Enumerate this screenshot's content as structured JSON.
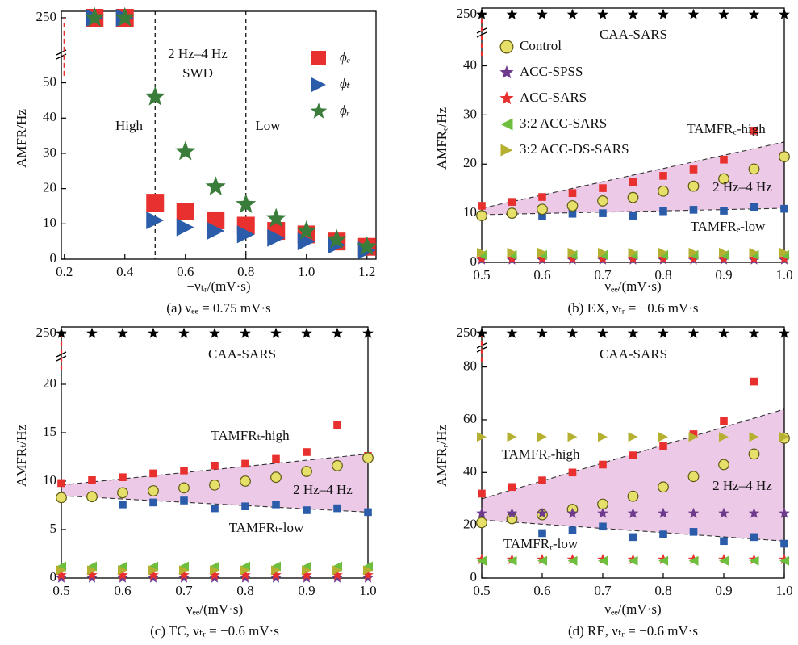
{
  "chart_data": [
    {
      "type": "scatter",
      "caption": "(a) νₑₑ = 0.75 mV·s",
      "x_label": "−νₜᵣ/(mV·s)",
      "y_label": "AMFR/Hz",
      "xlim": [
        0.19,
        1.23
      ],
      "xticks": [
        0.2,
        0.4,
        0.6,
        0.8,
        {
          "value": 1,
          "label": "1.0"
        },
        1.2
      ],
      "ylim": [
        0,
        250
      ],
      "ybreak": 57,
      "yticks": [
        0,
        10,
        20,
        30,
        40,
        50,
        250
      ],
      "x": [
        0.3,
        0.4,
        0.5,
        0.6,
        0.7,
        0.8,
        0.9,
        1.0,
        1.1,
        1.2
      ],
      "vlines": [
        0.5,
        0.8
      ],
      "annotations": [
        "2 Hz–4 Hz",
        "SWD",
        "High",
        "Low"
      ],
      "legend": true,
      "series": [
        {
          "x": [
            0.2,
            0.2
          ],
          "values": [
            52,
            250
          ],
          "color": "#e8312f",
          "style": "dashed"
        },
        {
          "name": "ϕₑ",
          "marker": "square",
          "color": "#e8312f",
          "values": [
            250,
            250,
            16,
            13.5,
            11,
            9.5,
            8,
            7,
            5,
            3.5
          ]
        },
        {
          "name": "ϕₜ",
          "marker": "tri-right",
          "color": "#2a5caa",
          "values": [
            250,
            250,
            11,
            9,
            8,
            7,
            6,
            5,
            4,
            2.5
          ]
        },
        {
          "name": "ϕᵣ",
          "marker": "star",
          "color": "#3a7d3a",
          "values": [
            250,
            250,
            46,
            30.5,
            20.5,
            15.5,
            11.5,
            8,
            5.5,
            3.5
          ]
        }
      ]
    },
    {
      "type": "scatter",
      "caption": "(b) EX, νₜᵣ = −0.6 mV·s",
      "x_label": "νₑₑ/(mV·s)",
      "y_label": "AMFRₑ/Hz",
      "xlim": [
        0.5,
        1.0
      ],
      "xticks": [
        0.5,
        0.6,
        0.7,
        0.8,
        0.9,
        {
          "value": 1,
          "label": "1.0"
        }
      ],
      "ylim": [
        0,
        250
      ],
      "ybreak": 46,
      "yticks": [
        0,
        10,
        20,
        30,
        40,
        250
      ],
      "x": [
        0.5,
        0.55,
        0.6,
        0.65,
        0.7,
        0.75,
        0.8,
        0.85,
        0.9,
        0.95,
        1.0
      ],
      "annotations": [
        "CAA-SARS",
        "TAMFRₑ-high",
        "2 Hz–4 Hz",
        "TAMFRₑ-low"
      ],
      "legend": true,
      "band_color": "#ecc9e6",
      "fit_lines": [
        {
          "x": [
            0.5,
            1.0
          ],
          "values": [
            11,
            24.5
          ]
        },
        {
          "x": [
            0.5,
            1.0
          ],
          "values": [
            9.7,
            11
          ]
        }
      ],
      "series": [
        {
          "x": [
            0.5,
            0.5
          ],
          "values": [
            42,
            250
          ],
          "color": "#e8312f",
          "style": "dashed"
        },
        {
          "marker": "star",
          "color": "#000000",
          "values": [
            250,
            250,
            250,
            250,
            250,
            250,
            250,
            250,
            250,
            250,
            250
          ]
        },
        {
          "marker": "small-square",
          "color": "#e8312f",
          "values": [
            11.5,
            12.3,
            13.3,
            14.1,
            15.1,
            16.3,
            17.6,
            18.9,
            20.9,
            26.8,
            21.7
          ]
        },
        {
          "marker": "small-square",
          "color": "#2a5caa",
          "values": [
            9.7,
            10,
            9.4,
            9.9,
            10,
            9.5,
            10.4,
            10.7,
            10.5,
            11.3,
            10.9
          ]
        },
        {
          "name": "Control",
          "marker": "circle",
          "color": "#e6e06a",
          "values": [
            9.5,
            10,
            10.8,
            11.5,
            12.5,
            13.2,
            14.5,
            15.5,
            17,
            19,
            21.5
          ]
        },
        {
          "name": "ACC-SPSS",
          "marker": "star",
          "color": "#6d3a8c",
          "values": [
            0.5,
            0.5,
            0.5,
            0.5,
            0.5,
            0.5,
            0.5,
            0.5,
            0.5,
            0.5,
            0.5
          ]
        },
        {
          "name": "ACC-SARS",
          "marker": "star",
          "color": "#e8312f",
          "values": [
            0.8,
            0.8,
            0.8,
            0.8,
            0.8,
            0.8,
            0.8,
            0.8,
            0.8,
            0.8,
            0.8
          ]
        },
        {
          "name": "3:2 ACC-SARS",
          "marker": "tri-left",
          "color": "#6fbf3f",
          "values": [
            1.5,
            1.5,
            1.5,
            1.5,
            1.5,
            1.5,
            1.5,
            1.5,
            1.5,
            1.5,
            1.5
          ]
        },
        {
          "name": "3:2 ACC-DS-SARS",
          "marker": "tri-right",
          "color": "#b5b030",
          "values": [
            2,
            2,
            2,
            2,
            2,
            2,
            2,
            2,
            2,
            2,
            2
          ]
        }
      ]
    },
    {
      "type": "scatter",
      "caption": "(c) TC, νₜᵣ = −0.6 mV·s",
      "x_label": "νₑₑ/(mV·s)",
      "y_label": "AMFRₜ/Hz",
      "xlim": [
        0.5,
        1.0
      ],
      "xticks": [
        0.5,
        0.6,
        0.7,
        0.8,
        0.9,
        {
          "value": 1,
          "label": "1.0"
        }
      ],
      "ylim": [
        0,
        250
      ],
      "ybreak": 22.5,
      "yticks": [
        0,
        5,
        10,
        15,
        20,
        250
      ],
      "x": [
        0.5,
        0.55,
        0.6,
        0.65,
        0.7,
        0.75,
        0.8,
        0.85,
        0.9,
        0.95,
        1.0
      ],
      "annotations": [
        "CAA-SARS",
        "TAMFRₜ-high",
        "2 Hz–4 Hz",
        "TAMFRₜ-low"
      ],
      "legend": false,
      "band_color": "#ecc9e6",
      "fit_lines": [
        {
          "x": [
            0.5,
            1.0
          ],
          "values": [
            9.6,
            12.8
          ]
        },
        {
          "x": [
            0.5,
            1.0
          ],
          "values": [
            8.5,
            6.8
          ]
        }
      ],
      "series": [
        {
          "x": [
            0.5,
            0.5
          ],
          "values": [
            21.5,
            250
          ],
          "color": "#e8312f",
          "style": "dashed"
        },
        {
          "marker": "star",
          "color": "#000000",
          "values": [
            250,
            250,
            250,
            250,
            250,
            250,
            250,
            250,
            250,
            250,
            250
          ]
        },
        {
          "marker": "small-square",
          "color": "#e8312f",
          "values": [
            9.8,
            10.1,
            10.4,
            10.8,
            11.1,
            11.6,
            11.8,
            12.3,
            13,
            15.8,
            12.6
          ]
        },
        {
          "marker": "small-square",
          "color": "#2a5caa",
          "values": [
            8.3,
            8.4,
            7.6,
            7.8,
            8,
            7.2,
            7.4,
            7.6,
            7,
            7.2,
            6.8
          ]
        },
        {
          "name": "Control",
          "marker": "circle",
          "color": "#e6e06a",
          "values": [
            8.3,
            8.4,
            8.8,
            9,
            9.3,
            9.6,
            10,
            10.4,
            11,
            11.6,
            12.4
          ]
        },
        {
          "name": "ACC-SPSS",
          "marker": "star",
          "color": "#6d3a8c",
          "values": [
            0,
            0,
            0,
            0,
            0,
            0,
            0,
            0,
            0,
            0,
            0
          ]
        },
        {
          "name": "ACC-SARS",
          "marker": "star",
          "color": "#e8312f",
          "values": [
            0.3,
            0.3,
            0.3,
            0.3,
            0.3,
            0.3,
            0.3,
            0.3,
            0.3,
            0.3,
            0.3
          ]
        },
        {
          "name": "3:2 ACC-SARS",
          "marker": "tri-left",
          "color": "#6fbf3f",
          "values": [
            1.2,
            1.2,
            1.2,
            1.2,
            1.2,
            1.2,
            1.2,
            1.2,
            1.2,
            1.2,
            1.2
          ]
        },
        {
          "name": "3:2 ACC-DS-SARS",
          "marker": "tri-right",
          "color": "#b5b030",
          "values": [
            0.8,
            0.8,
            0.8,
            0.8,
            0.8,
            0.8,
            0.8,
            0.8,
            0.8,
            0.8,
            0.8
          ]
        }
      ]
    },
    {
      "type": "scatter",
      "caption": "(d) RE, νₜᵣ = −0.6 mV·s",
      "x_label": "νₑₑ/(mV·s)",
      "y_label": "AMFRᵣ/Hz",
      "xlim": [
        0.5,
        1.0
      ],
      "xticks": [
        0.5,
        0.6,
        0.7,
        0.8,
        0.9,
        {
          "value": 1,
          "label": "1.0"
        }
      ],
      "ylim": [
        0,
        250
      ],
      "ybreak": 86,
      "yticks": [
        0,
        20,
        40,
        60,
        80,
        250
      ],
      "x": [
        0.5,
        0.55,
        0.6,
        0.65,
        0.7,
        0.75,
        0.8,
        0.85,
        0.9,
        0.95,
        1.0
      ],
      "annotations": [
        "CAA-SARS",
        "TAMFRᵣ-high",
        "2 Hz–4 Hz",
        "TAMFRᵣ-low"
      ],
      "legend": false,
      "band_color": "#ecc9e6",
      "fit_lines": [
        {
          "x": [
            0.5,
            1.0
          ],
          "values": [
            30,
            64
          ]
        },
        {
          "x": [
            0.5,
            1.0
          ],
          "values": [
            22,
            14
          ]
        }
      ],
      "series": [
        {
          "x": [
            0.5,
            0.5
          ],
          "values": [
            82,
            250
          ],
          "color": "#e8312f",
          "style": "dashed"
        },
        {
          "marker": "star",
          "color": "#000000",
          "values": [
            250,
            250,
            250,
            250,
            250,
            250,
            250,
            250,
            250,
            250,
            250
          ]
        },
        {
          "marker": "small-square",
          "color": "#e8312f",
          "values": [
            32,
            34.5,
            37,
            40,
            43,
            46.5,
            50,
            54.5,
            59.5,
            74.5,
            53.5
          ]
        },
        {
          "marker": "small-square",
          "color": "#2a5caa",
          "values": [
            21,
            23,
            17,
            18,
            19.5,
            15.5,
            16.5,
            17.5,
            14,
            15.5,
            13
          ]
        },
        {
          "name": "Control",
          "marker": "circle",
          "color": "#e6e06a",
          "values": [
            21,
            22.5,
            24,
            26,
            28,
            31,
            34.5,
            38.5,
            43,
            47,
            53
          ]
        },
        {
          "name": "ACC-SPSS",
          "marker": "star",
          "color": "#6d3a8c",
          "values": [
            24.5,
            24.5,
            24.5,
            24.5,
            24.5,
            24.5,
            24.5,
            24.5,
            24.5,
            24.5,
            24.5
          ]
        },
        {
          "name": "ACC-SARS",
          "marker": "star",
          "color": "#e8312f",
          "values": [
            7,
            7,
            7,
            7,
            7,
            7,
            7,
            7,
            7,
            7,
            7
          ]
        },
        {
          "name": "3:2 ACC-SARS",
          "marker": "tri-left",
          "color": "#6fbf3f",
          "values": [
            6.5,
            6.5,
            6.5,
            6.5,
            6.5,
            6.5,
            6.5,
            6.5,
            6.5,
            6.5,
            6.5
          ]
        },
        {
          "name": "3:2 ACC-DS-SARS",
          "marker": "tri-right",
          "color": "#b5b030",
          "values": [
            53.5,
            53.5,
            53.5,
            53.5,
            53.5,
            53.5,
            53.5,
            53.5,
            53.5,
            53.5,
            53.5
          ]
        }
      ]
    }
  ]
}
